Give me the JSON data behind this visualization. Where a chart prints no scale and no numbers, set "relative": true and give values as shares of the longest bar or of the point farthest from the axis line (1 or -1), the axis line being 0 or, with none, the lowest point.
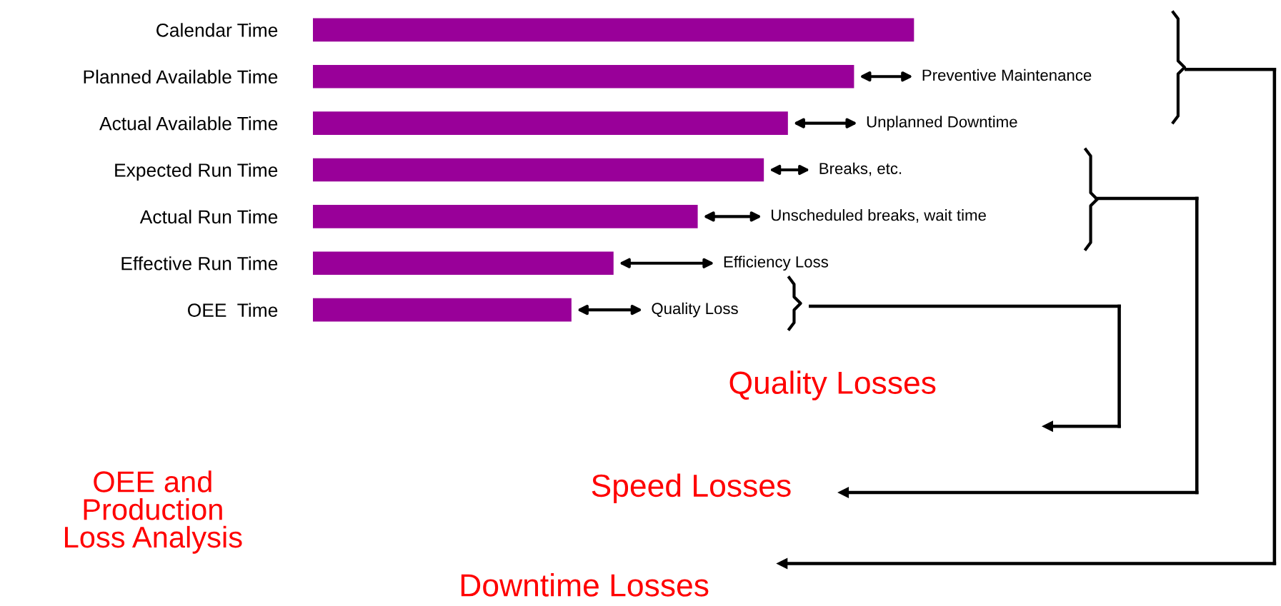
{
  "chart_data": {
    "type": "bar",
    "orientation": "horizontal",
    "relative": true,
    "title": "OEE and\nProduction\nLoss Analysis",
    "categories": [
      "Calendar Time",
      "Planned Available Time",
      "Actual Available Time",
      "Expected Run Time",
      "Actual Run Time",
      "Effective Run Time",
      "OEE  Time"
    ],
    "values": [
      1,
      0.9,
      0.79,
      0.75,
      0.64,
      0.5,
      0.43
    ],
    "color": "#990099",
    "annotations": [
      "Preventive Maintenance",
      "Unplanned Downtime",
      "Breaks, etc.",
      "Unscheduled breaks, wait time",
      "Efficiency Loss",
      "Quality Loss",
      "Quality Losses",
      "Speed Losses",
      "Downtime Losses"
    ],
    "grid": false,
    "legend": false
  }
}
